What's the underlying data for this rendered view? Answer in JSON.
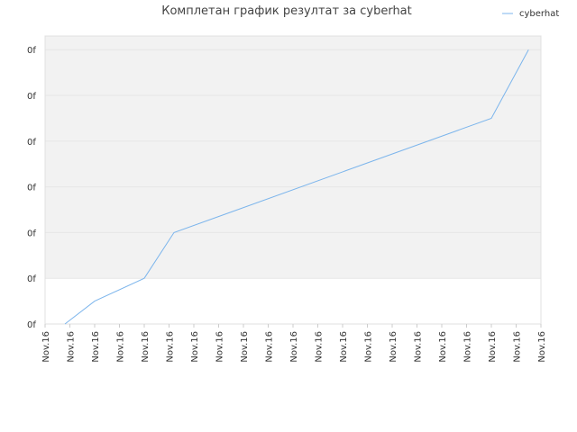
{
  "chart_data": {
    "type": "line",
    "title": "Комплетан график резултат за cyberhat",
    "series": [
      {
        "name": "cyberhat",
        "color": "#7cb5ec",
        "x": [
          0.8,
          2,
          4,
          5.2,
          18,
          19.5
        ],
        "values": [
          0,
          0.5,
          1,
          2,
          4.5,
          6
        ]
      }
    ],
    "xlim": [
      0,
      20
    ],
    "xticks": [
      {
        "value": 0,
        "label": "Nov.16"
      },
      {
        "value": 1,
        "label": "Nov.16"
      },
      {
        "value": 2,
        "label": "Nov.16"
      },
      {
        "value": 3,
        "label": "Nov.16"
      },
      {
        "value": 4,
        "label": "Nov.16"
      },
      {
        "value": 5,
        "label": "Nov.16"
      },
      {
        "value": 6,
        "label": "Nov.16"
      },
      {
        "value": 7,
        "label": "Nov.16"
      },
      {
        "value": 8,
        "label": "Nov.16"
      },
      {
        "value": 9,
        "label": "Nov.16"
      },
      {
        "value": 10,
        "label": "Nov.16"
      },
      {
        "value": 11,
        "label": "Nov.16"
      },
      {
        "value": 12,
        "label": "Nov.16"
      },
      {
        "value": 13,
        "label": "Nov.16"
      },
      {
        "value": 14,
        "label": "Nov.16"
      },
      {
        "value": 15,
        "label": "Nov.16"
      },
      {
        "value": 16,
        "label": "Nov.16"
      },
      {
        "value": 17,
        "label": "Nov.16"
      },
      {
        "value": 18,
        "label": "Nov.16"
      },
      {
        "value": 19,
        "label": "Nov.16"
      },
      {
        "value": 20,
        "label": "Nov.16"
      }
    ],
    "ylim": [
      0,
      6.3
    ],
    "yticks": [
      {
        "value": 0,
        "label": "0f"
      },
      {
        "value": 1,
        "label": "0f"
      },
      {
        "value": 2,
        "label": "0f"
      },
      {
        "value": 3,
        "label": "0f"
      },
      {
        "value": 4,
        "label": "0f"
      },
      {
        "value": 5,
        "label": "0f"
      },
      {
        "value": 6,
        "label": "0f"
      }
    ],
    "legend": "top-right",
    "grid": true
  }
}
